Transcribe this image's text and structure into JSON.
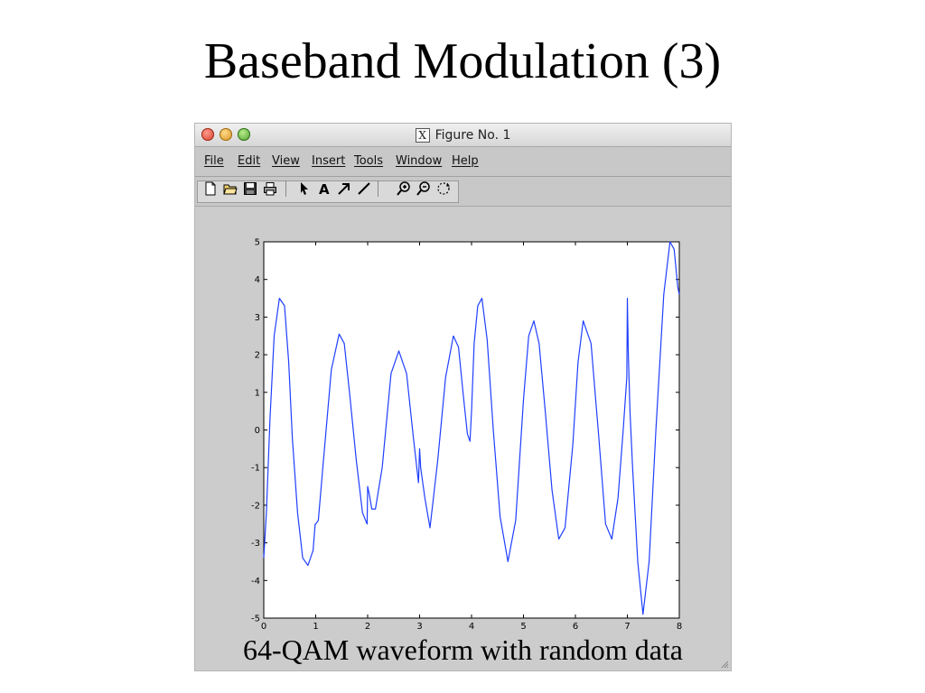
{
  "slide": {
    "title": "Baseband Modulation (3)",
    "caption": "64-QAM waveform with random data"
  },
  "window": {
    "title": "Figure No. 1",
    "title_icon": "x11-icon",
    "menu": [
      "File",
      "Edit",
      "View",
      "Insert",
      "Tools",
      "Window",
      "Help"
    ],
    "toolbar_icons": [
      "new-file-icon",
      "open-folder-icon",
      "save-icon",
      "print-icon",
      "select-arrow-icon",
      "insert-text-icon",
      "insert-arrow-icon",
      "insert-line-icon",
      "zoom-in-icon",
      "zoom-out-icon",
      "rotate-3d-icon"
    ]
  },
  "chart_data": {
    "type": "line",
    "title": "",
    "xlabel": "",
    "ylabel": "",
    "xlim": [
      0,
      8
    ],
    "ylim": [
      -5,
      5
    ],
    "xticks": [
      0,
      1,
      2,
      3,
      4,
      5,
      6,
      7,
      8
    ],
    "yticks": [
      -5,
      -4,
      -3,
      -2,
      -1,
      0,
      1,
      2,
      3,
      4,
      5
    ],
    "grid": false,
    "series": [
      {
        "color": "#1f3fff",
        "x": [
          0,
          0.05,
          0.12,
          0.2,
          0.3,
          0.4,
          0.48,
          0.55,
          0.65,
          0.75,
          0.85,
          0.95,
          0.99,
          1.0,
          1.05,
          1.15,
          1.3,
          1.45,
          1.55,
          1.65,
          1.78,
          1.9,
          1.99,
          2.0,
          2.03,
          2.08,
          2.15,
          2.28,
          2.45,
          2.6,
          2.75,
          2.88,
          2.98,
          3.0,
          3.02,
          3.05,
          3.1,
          3.2,
          3.35,
          3.5,
          3.65,
          3.75,
          3.85,
          3.92,
          3.97,
          4.0,
          4.05,
          4.12,
          4.2,
          4.3,
          4.42,
          4.55,
          4.7,
          4.85,
          5.0,
          5.1,
          5.2,
          5.3,
          5.42,
          5.55,
          5.68,
          5.8,
          5.95,
          6.05,
          6.15,
          6.3,
          6.45,
          6.58,
          6.7,
          6.82,
          6.92,
          6.99,
          7.0,
          7.02,
          7.05,
          7.1,
          7.2,
          7.3,
          7.42,
          7.55,
          7.7,
          7.82,
          7.9,
          7.97,
          8.0
        ],
        "y": [
          -3.4,
          -2.2,
          0.3,
          2.5,
          3.5,
          3.3,
          1.8,
          -0.2,
          -2.2,
          -3.4,
          -3.6,
          -3.2,
          -2.5,
          -2.5,
          -2.4,
          -0.8,
          1.6,
          2.55,
          2.3,
          1.0,
          -0.8,
          -2.2,
          -2.5,
          -1.5,
          -1.7,
          -2.1,
          -2.1,
          -1.0,
          1.5,
          2.1,
          1.5,
          -0.2,
          -1.4,
          -0.5,
          -1.0,
          -1.3,
          -1.8,
          -2.6,
          -0.8,
          1.4,
          2.5,
          2.2,
          0.8,
          -0.1,
          -0.3,
          0.5,
          2.3,
          3.3,
          3.5,
          2.4,
          0.0,
          -2.3,
          -3.5,
          -2.4,
          0.8,
          2.5,
          2.9,
          2.3,
          0.5,
          -1.6,
          -2.9,
          -2.6,
          -0.4,
          1.8,
          2.9,
          2.3,
          -0.2,
          -2.5,
          -2.9,
          -1.8,
          0.0,
          1.4,
          3.5,
          2.0,
          0.5,
          -1.0,
          -3.5,
          -4.9,
          -3.5,
          0.0,
          3.6,
          5.0,
          4.8,
          3.8,
          3.6
        ]
      }
    ]
  }
}
